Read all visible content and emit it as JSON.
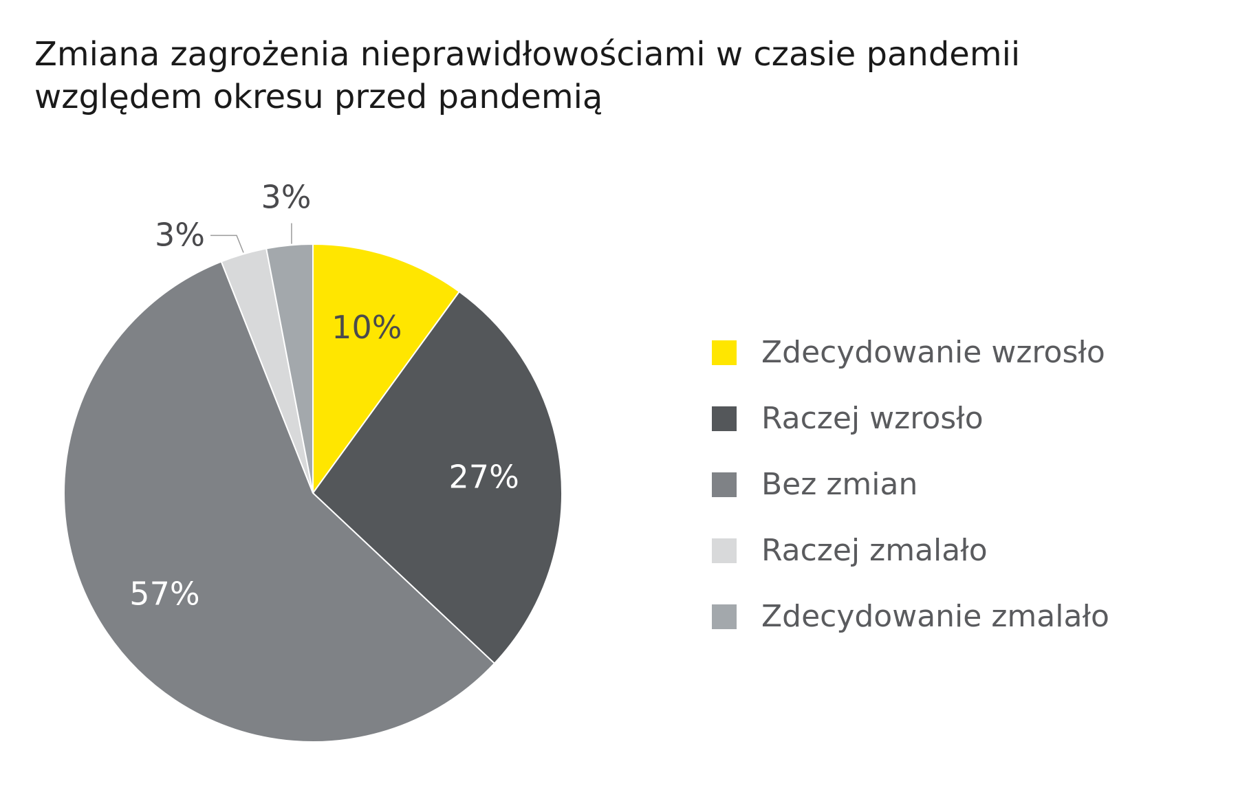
{
  "chart_data": {
    "type": "pie",
    "title": "Zmiana zagrożenia nieprawidłowościami w czasie pandemii względem okresu przed pandemią",
    "title_lines": [
      "Zmiana zagrożenia nieprawidłowościami w czasie pandemii",
      "względem okresu przed pandemią"
    ],
    "slices": [
      {
        "label": "Zdecydowanie wzrosło",
        "value": 10,
        "display": "10%",
        "color": "#FFE600",
        "text_color": "#4a4a4d"
      },
      {
        "label": "Raczej wzrosło",
        "value": 27,
        "display": "27%",
        "color": "#54575A",
        "text_color": "#ffffff"
      },
      {
        "label": "Bez zmian",
        "value": 57,
        "display": "57%",
        "color": "#7F8286",
        "text_color": "#ffffff"
      },
      {
        "label": "Raczej zmalało",
        "value": 3,
        "display": "3%",
        "color": "#D8D9DA",
        "text_color": "#4a4a4d"
      },
      {
        "label": "Zdecydowanie zmalało",
        "value": 3,
        "display": "3%",
        "color": "#A3A8AC",
        "text_color": "#4a4a4d"
      }
    ],
    "legend_position": "right",
    "start_angle": "top",
    "direction": "clockwise"
  }
}
